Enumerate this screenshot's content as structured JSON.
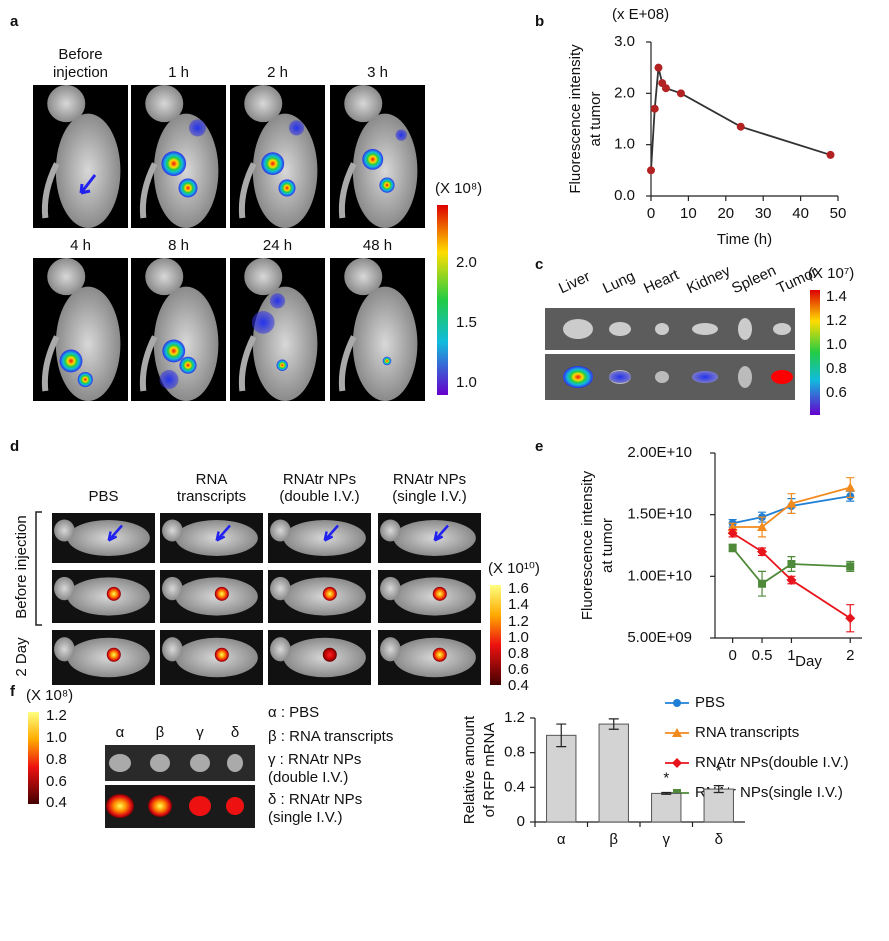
{
  "panel_labels": [
    "a",
    "b",
    "c",
    "d",
    "e",
    "f"
  ],
  "panel_a": {
    "time_labels": [
      [
        "Before",
        "injection"
      ],
      "1 h",
      "2 h",
      "3 h",
      "4 h",
      "8 h",
      "24 h",
      "48 h"
    ],
    "colorbar": {
      "unit": "(X 10⁸)",
      "ticks": [
        "2.0",
        "1.5",
        "1.0"
      ]
    }
  },
  "panel_c": {
    "organs": [
      "Liver",
      "Lung",
      "Heart",
      "Kidney",
      "Spleen",
      "Tumor"
    ],
    "colorbar": {
      "unit": "(X 10⁷)",
      "ticks": [
        "1.4",
        "1.2",
        "1.0",
        "0.8",
        "0.6"
      ]
    }
  },
  "panel_d": {
    "groups": [
      [
        "PBS"
      ],
      [
        "RNA",
        "transcripts"
      ],
      [
        "RNAtr NPs",
        "(double I.V.)"
      ],
      [
        "RNAtr NPs",
        "(single I.V.)"
      ]
    ],
    "rows": [
      "Before injection",
      "2 Day"
    ],
    "colorbar": {
      "unit": "(X 10¹⁰)",
      "ticks": [
        "1.6",
        "1.4",
        "1.2",
        "1.0",
        "0.8",
        "0.6",
        "0.4"
      ]
    }
  },
  "panel_f": {
    "columns": [
      "α",
      "β",
      "γ",
      "δ"
    ],
    "legend": [
      [
        "α : PBS"
      ],
      [
        "β : RNA transcripts"
      ],
      [
        "γ : RNAtr NPs",
        "(double I.V.)"
      ],
      [
        "δ : RNAtr NPs",
        "(single I.V.)"
      ]
    ],
    "colorbar": {
      "unit": "(X 10⁸)",
      "ticks": [
        "1.2",
        "1.0",
        "0.8",
        "0.6",
        "0.4"
      ]
    }
  },
  "chart_data": [
    {
      "type": "line",
      "unit_label": "(x E+08)",
      "ylabel": [
        "Fluorescence intensity",
        "at tumor"
      ],
      "xlabel": "Time (h)",
      "x": [
        0,
        1,
        2,
        3,
        4,
        8,
        24,
        48
      ],
      "series": [
        {
          "values": [
            0.5,
            1.7,
            2.5,
            2.2,
            2.1,
            2.0,
            1.35,
            0.8
          ],
          "color": "#333333",
          "marker_color": "#b22222",
          "marker": "circle"
        }
      ],
      "xlim": [
        0,
        50
      ],
      "xticks": [
        0,
        10,
        20,
        30,
        40,
        50
      ],
      "ylim": [
        0,
        3
      ],
      "yticks": [
        {
          "value": 0,
          "label": "0.0"
        },
        {
          "value": 1,
          "label": "1.0"
        },
        {
          "value": 2,
          "label": "2.0"
        },
        {
          "value": 3,
          "label": "3.0"
        }
      ]
    },
    {
      "type": "line",
      "ylabel": [
        "Fluorescence intensity",
        "at tumor"
      ],
      "xlabel": "Day",
      "x": [
        0,
        0.5,
        1,
        2
      ],
      "series": [
        {
          "name": "PBS",
          "color": "#1f7fd6",
          "marker": "circle",
          "values": [
            14300000000,
            14800000000,
            15700000000,
            16500000000
          ],
          "errors": [
            300000000,
            400000000,
            600000000,
            400000000
          ]
        },
        {
          "name": "RNA transcripts",
          "color": "#f28a1e",
          "marker": "triangle",
          "values": [
            14000000000,
            14000000000,
            15900000000,
            17200000000
          ],
          "errors": [
            300000000,
            800000000,
            800000000,
            800000000
          ]
        },
        {
          "name": "RNAtr NPs(double I.V.)",
          "color": "#e8141c",
          "marker": "diamond",
          "values": [
            13500000000,
            12000000000,
            9700000000,
            6600000000
          ],
          "errors": [
            300000000,
            300000000,
            300000000,
            1100000000
          ]
        },
        {
          "name": "RNAtr NPs(single I.V.)",
          "color": "#4e8a3a",
          "marker": "square",
          "values": [
            12300000000,
            9400000000,
            11000000000,
            10800000000
          ],
          "errors": [
            300000000,
            1000000000,
            600000000,
            400000000
          ]
        }
      ],
      "xlim": [
        -0.3,
        2.2
      ],
      "xticks": [
        0,
        0.5,
        1,
        2
      ],
      "ylim": [
        5000000000,
        20000000000
      ],
      "yticks": [
        {
          "value": 5000000000,
          "label": "5.00E+09"
        },
        {
          "value": 10000000000,
          "label": "1.00E+10"
        },
        {
          "value": 15000000000,
          "label": "1.50E+10"
        },
        {
          "value": 20000000000,
          "label": "2.00E+10"
        }
      ],
      "legend": "below"
    },
    {
      "type": "bar",
      "ylabel": [
        "Relative amount",
        "of RFP mRNA"
      ],
      "categories": [
        "α",
        "β",
        "γ",
        "δ"
      ],
      "values": [
        1.0,
        1.13,
        0.33,
        0.38
      ],
      "errors": [
        0.13,
        0.06,
        0.01,
        0.04
      ],
      "significance": [
        null,
        null,
        "*",
        "*"
      ],
      "color": "#d3d3d3",
      "ylim": [
        0,
        1.2
      ],
      "yticks": [
        0,
        0.4,
        0.8,
        1.2
      ]
    }
  ]
}
